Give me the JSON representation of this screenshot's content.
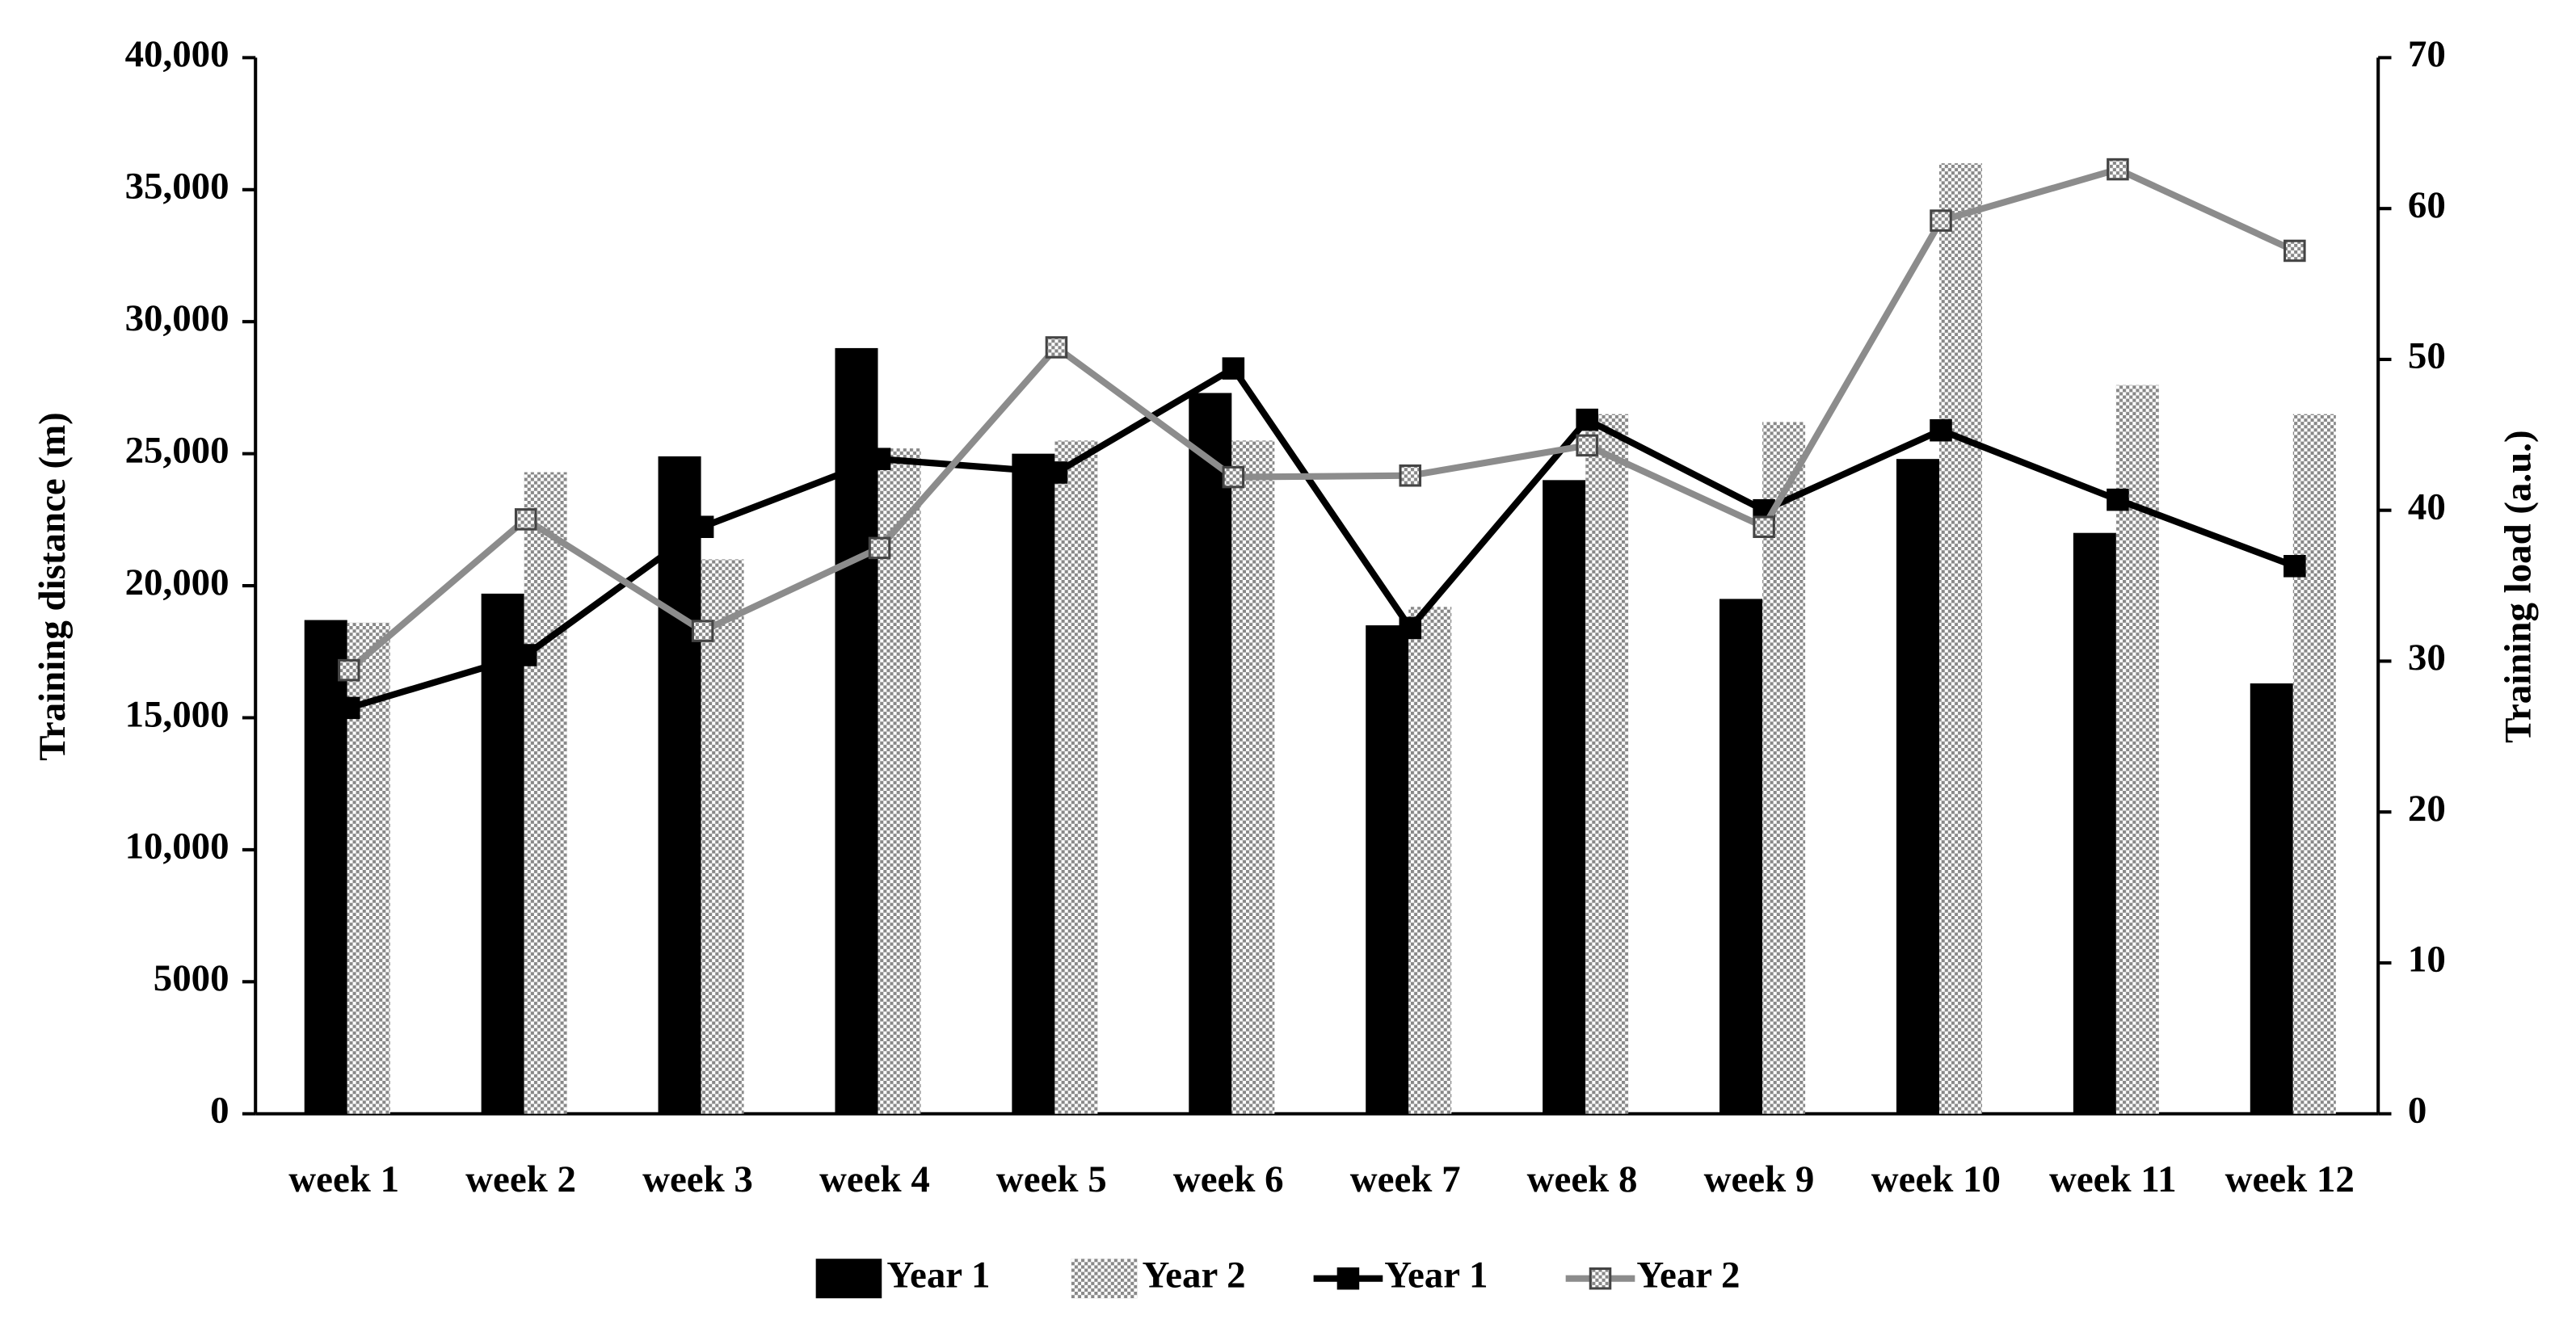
{
  "chart_data": {
    "type": "bar",
    "y_label": "Training distance (m)",
    "y2_label": "Training load (a.u.)",
    "categories": [
      "week 1",
      "week 2",
      "week 3",
      "week 4",
      "week 5",
      "week 6",
      "week 7",
      "week 8",
      "week 9",
      "week 10",
      "week 11",
      "week 12"
    ],
    "series": [
      {
        "name": "Year 1",
        "type": "bar",
        "color": "#000000",
        "values": [
          18700,
          19700,
          24900,
          29000,
          25000,
          27300,
          18500,
          24000,
          19500,
          24800,
          22000,
          16300
        ]
      },
      {
        "name": "Year 2",
        "type": "bar",
        "color": "#888888",
        "pattern": "checker",
        "values": [
          18600,
          24300,
          21000,
          25200,
          25500,
          25500,
          19200,
          26500,
          26200,
          36000,
          27600,
          26500
        ]
      },
      {
        "name": "Year 1",
        "type": "line",
        "axis": "y2",
        "color": "#000000",
        "values": [
          26.9,
          30.4,
          38.9,
          43.4,
          42.5,
          49.4,
          32.2,
          46.0,
          40.0,
          45.3,
          40.7,
          36.3
        ]
      },
      {
        "name": "Year 2",
        "type": "line",
        "axis": "y2",
        "color": "#8c8c8c",
        "pattern": "checker",
        "values": [
          29.4,
          39.4,
          32.0,
          37.5,
          50.8,
          42.2,
          42.3,
          44.3,
          38.9,
          59.2,
          62.6,
          57.2
        ]
      }
    ],
    "ylim": [
      0,
      40000
    ],
    "yticks": [
      0,
      5000,
      {
        "value": 10000,
        "label": "10,000"
      },
      {
        "value": 15000,
        "label": "15,000"
      },
      {
        "value": 20000,
        "label": "20,000"
      },
      {
        "value": 25000,
        "label": "25,000"
      },
      {
        "value": 30000,
        "label": "30,000"
      },
      {
        "value": 35000,
        "label": "35,000"
      },
      {
        "value": 40000,
        "label": "40,000"
      }
    ],
    "y2lim": [
      0,
      70
    ],
    "y2ticks": [
      0,
      10,
      20,
      30,
      40,
      50,
      60,
      70
    ],
    "grid": false,
    "legend": "bottom"
  }
}
